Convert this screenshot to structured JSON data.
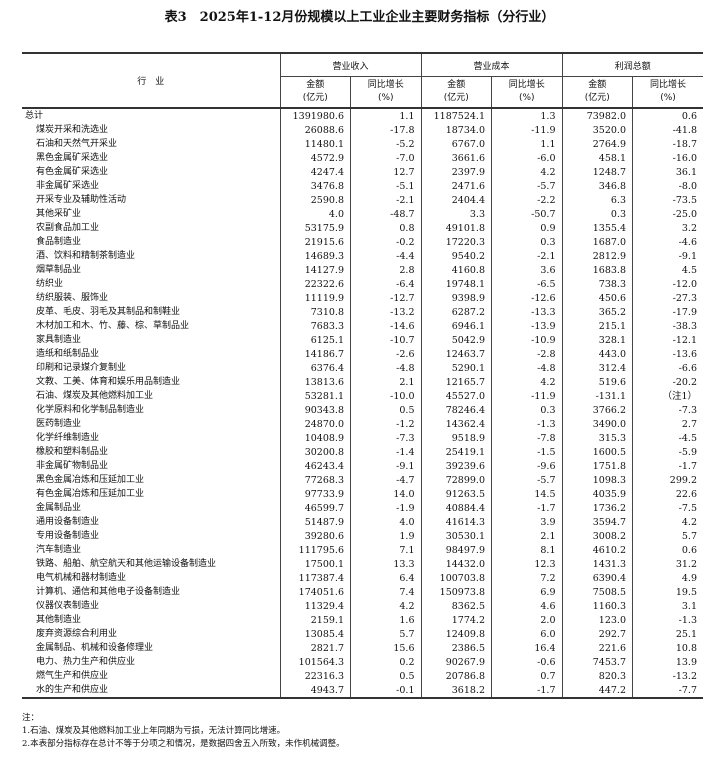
{
  "title": "表3　2025年1-12月份规模以上工业企业主要财务指标（分行业）",
  "header": {
    "industry": "行　业",
    "groups": [
      "营业收入",
      "营业成本",
      "利润总额"
    ],
    "amount": "金额",
    "amount_unit": "(亿元)",
    "growth": "同比增长",
    "growth_unit": "(%)"
  },
  "rows": [
    [
      "总计",
      "1391980.6",
      "1.1",
      "1187524.1",
      "1.3",
      "73982.0",
      "0.6"
    ],
    [
      "煤炭开采和洗选业",
      "26088.6",
      "-17.8",
      "18734.0",
      "-11.9",
      "3520.0",
      "-41.8"
    ],
    [
      "石油和天然气开采业",
      "11480.1",
      "-5.2",
      "6767.0",
      "1.1",
      "2764.9",
      "-18.7"
    ],
    [
      "黑色金属矿采选业",
      "4572.9",
      "-7.0",
      "3661.6",
      "-6.0",
      "458.1",
      "-16.0"
    ],
    [
      "有色金属矿采选业",
      "4247.4",
      "12.7",
      "2397.9",
      "4.2",
      "1248.7",
      "36.1"
    ],
    [
      "非金属矿采选业",
      "3476.8",
      "-5.1",
      "2471.6",
      "-5.7",
      "346.8",
      "-8.0"
    ],
    [
      "开采专业及辅助性活动",
      "2590.8",
      "-2.1",
      "2404.4",
      "-2.2",
      "6.3",
      "-73.5"
    ],
    [
      "其他采矿业",
      "4.0",
      "-48.7",
      "3.3",
      "-50.7",
      "0.3",
      "-25.0"
    ],
    [
      "农副食品加工业",
      "53175.9",
      "0.8",
      "49101.8",
      "0.9",
      "1355.4",
      "3.2"
    ],
    [
      "食品制造业",
      "21915.6",
      "-0.2",
      "17220.3",
      "0.3",
      "1687.0",
      "-4.6"
    ],
    [
      "酒、饮料和精制茶制造业",
      "14689.3",
      "-4.4",
      "9540.2",
      "-2.1",
      "2812.9",
      "-9.1"
    ],
    [
      "烟草制品业",
      "14127.9",
      "2.8",
      "4160.8",
      "3.6",
      "1683.8",
      "4.5"
    ],
    [
      "纺织业",
      "22322.6",
      "-6.4",
      "19748.1",
      "-6.5",
      "738.3",
      "-12.0"
    ],
    [
      "纺织服装、服饰业",
      "11119.9",
      "-12.7",
      "9398.9",
      "-12.6",
      "450.6",
      "-27.3"
    ],
    [
      "皮革、毛皮、羽毛及其制品和制鞋业",
      "7310.8",
      "-13.2",
      "6287.2",
      "-13.3",
      "365.2",
      "-17.9"
    ],
    [
      "木材加工和木、竹、藤、棕、草制品业",
      "7683.3",
      "-14.6",
      "6946.1",
      "-13.9",
      "215.1",
      "-38.3"
    ],
    [
      "家具制造业",
      "6125.1",
      "-10.7",
      "5042.9",
      "-10.9",
      "328.1",
      "-12.1"
    ],
    [
      "造纸和纸制品业",
      "14186.7",
      "-2.6",
      "12463.7",
      "-2.8",
      "443.0",
      "-13.6"
    ],
    [
      "印刷和记录媒介复制业",
      "6376.4",
      "-4.8",
      "5290.1",
      "-4.8",
      "312.4",
      "-6.6"
    ],
    [
      "文教、工美、体育和娱乐用品制造业",
      "13813.6",
      "2.1",
      "12165.7",
      "4.2",
      "519.6",
      "-20.2"
    ],
    [
      "石油、煤炭及其他燃料加工业",
      "53281.1",
      "-10.0",
      "45527.0",
      "-11.9",
      "-131.1",
      "（注1）"
    ],
    [
      "化学原料和化学制品制造业",
      "90343.8",
      "0.5",
      "78246.4",
      "0.3",
      "3766.2",
      "-7.3"
    ],
    [
      "医药制造业",
      "24870.0",
      "-1.2",
      "14362.4",
      "-1.3",
      "3490.0",
      "2.7"
    ],
    [
      "化学纤维制造业",
      "10408.9",
      "-7.3",
      "9518.9",
      "-7.8",
      "315.3",
      "-4.5"
    ],
    [
      "橡胶和塑料制品业",
      "30200.8",
      "-1.4",
      "25419.1",
      "-1.5",
      "1600.5",
      "-5.9"
    ],
    [
      "非金属矿物制品业",
      "46243.4",
      "-9.1",
      "39239.6",
      "-9.6",
      "1751.8",
      "-1.7"
    ],
    [
      "黑色金属冶炼和压延加工业",
      "77268.3",
      "-4.7",
      "72899.0",
      "-5.7",
      "1098.3",
      "299.2"
    ],
    [
      "有色金属冶炼和压延加工业",
      "97733.9",
      "14.0",
      "91263.5",
      "14.5",
      "4035.9",
      "22.6"
    ],
    [
      "金属制品业",
      "46599.7",
      "-1.9",
      "40884.4",
      "-1.7",
      "1736.2",
      "-7.5"
    ],
    [
      "通用设备制造业",
      "51487.9",
      "4.0",
      "41614.3",
      "3.9",
      "3594.7",
      "4.2"
    ],
    [
      "专用设备制造业",
      "39280.6",
      "1.9",
      "30530.1",
      "2.1",
      "3008.2",
      "5.7"
    ],
    [
      "汽车制造业",
      "111795.6",
      "7.1",
      "98497.9",
      "8.1",
      "4610.2",
      "0.6"
    ],
    [
      "铁路、船舶、航空航天和其他运输设备制造业",
      "17500.1",
      "13.3",
      "14432.0",
      "12.3",
      "1431.3",
      "31.2"
    ],
    [
      "电气机械和器材制造业",
      "117387.4",
      "6.4",
      "100703.8",
      "7.2",
      "6390.4",
      "4.9"
    ],
    [
      "计算机、通信和其他电子设备制造业",
      "174051.6",
      "7.4",
      "150973.8",
      "6.9",
      "7508.5",
      "19.5"
    ],
    [
      "仪器仪表制造业",
      "11329.4",
      "4.2",
      "8362.5",
      "4.6",
      "1160.3",
      "3.1"
    ],
    [
      "其他制造业",
      "2159.1",
      "1.6",
      "1774.2",
      "2.0",
      "123.0",
      "-1.3"
    ],
    [
      "废弃资源综合利用业",
      "13085.4",
      "5.7",
      "12409.8",
      "6.0",
      "292.7",
      "25.1"
    ],
    [
      "金属制品、机械和设备修理业",
      "2821.7",
      "15.6",
      "2386.5",
      "16.4",
      "221.6",
      "10.8"
    ],
    [
      "电力、热力生产和供应业",
      "101564.3",
      "0.2",
      "90267.9",
      "-0.6",
      "7453.7",
      "13.9"
    ],
    [
      "燃气生产和供应业",
      "22316.3",
      "0.5",
      "20786.8",
      "0.7",
      "820.3",
      "-13.2"
    ],
    [
      "水的生产和供应业",
      "4943.7",
      "-0.1",
      "3618.2",
      "-1.7",
      "447.2",
      "-7.7"
    ]
  ],
  "notes": [
    "注：",
    "1.石油、煤炭及其他燃料加工业上年同期为亏损，无法计算同比增速。",
    "2.本表部分指标存在总计不等于分项之和情况，是数据四舍五入所致，未作机械调整。"
  ]
}
